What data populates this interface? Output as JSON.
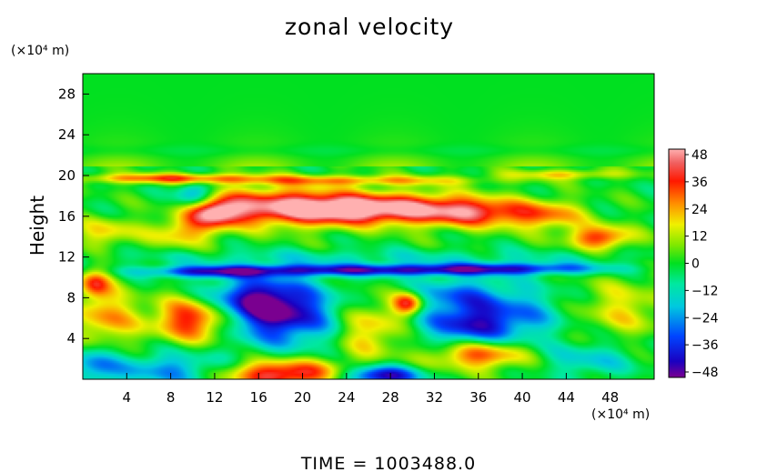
{
  "chart_data": {
    "type": "heatmap",
    "title": "zonal velocity",
    "ylabel": "Height",
    "y_unit": "(×10⁴ m)",
    "x_unit": "(×10⁴ m)",
    "xlim": [
      0,
      52
    ],
    "ylim": [
      0,
      30
    ],
    "x_ticks": [
      "4",
      "8",
      "12",
      "16",
      "20",
      "24",
      "28",
      "32",
      "36",
      "40",
      "44",
      "48"
    ],
    "y_ticks": [
      "4",
      "8",
      "12",
      "16",
      "20",
      "24",
      "28"
    ],
    "colorbar": {
      "min": -48,
      "max": 48,
      "labels": [
        "48",
        "36",
        "24",
        "12",
        "0",
        "−12",
        "−24",
        "−36",
        "−48"
      ]
    },
    "time_label": "TIME  =  1003488.0",
    "features": [
      {
        "x": 18,
        "y": 17,
        "sx": 4,
        "sy": 1.3,
        "v": 46
      },
      {
        "x": 12,
        "y": 16.5,
        "sx": 1.8,
        "sy": 1.0,
        "v": 44
      },
      {
        "x": 24,
        "y": 16.8,
        "sx": 3.0,
        "sy": 1.0,
        "v": 40
      },
      {
        "x": 30,
        "y": 16.8,
        "sx": 3.5,
        "sy": 1.1,
        "v": 40
      },
      {
        "x": 36,
        "y": 16.5,
        "sx": 3.0,
        "sy": 1.0,
        "v": 34
      },
      {
        "x": 42,
        "y": 16.2,
        "sx": 2.5,
        "sy": 1.0,
        "v": 26
      },
      {
        "x": 47,
        "y": 14,
        "sx": 2.0,
        "sy": 0.8,
        "v": 34
      },
      {
        "x": 9,
        "y": 14.5,
        "sx": 2.0,
        "sy": 1.0,
        "v": 22
      },
      {
        "x": 2,
        "y": 14.5,
        "sx": 2.0,
        "sy": 1.0,
        "v": 18
      },
      {
        "x": 8,
        "y": 19.8,
        "sx": 6.0,
        "sy": 0.35,
        "v": 30
      },
      {
        "x": 25,
        "y": 19.6,
        "sx": 8.0,
        "sy": 0.35,
        "v": 22
      },
      {
        "x": 44,
        "y": 20.2,
        "sx": 4.0,
        "sy": 0.35,
        "v": 18
      },
      {
        "x": 26,
        "y": 10.8,
        "sx": 10.0,
        "sy": 0.4,
        "v": -40
      },
      {
        "x": 11,
        "y": 10.6,
        "sx": 4.0,
        "sy": 0.4,
        "v": -28
      },
      {
        "x": 40,
        "y": 11.0,
        "sx": 6.0,
        "sy": 0.4,
        "v": -22
      },
      {
        "x": 26,
        "y": 12.0,
        "sx": 18.0,
        "sy": 0.6,
        "v": -10
      },
      {
        "x": 10,
        "y": 18.2,
        "sx": 1.2,
        "sy": 0.9,
        "v": -26
      },
      {
        "x": 10,
        "y": 6,
        "sx": 2.5,
        "sy": 1.5,
        "v": 40
      },
      {
        "x": 2,
        "y": 6,
        "sx": 2.0,
        "sy": 2.0,
        "v": 24
      },
      {
        "x": 1,
        "y": 9.5,
        "sx": 1.0,
        "sy": 1.0,
        "v": 30
      },
      {
        "x": 18,
        "y": 6.5,
        "sx": 3.5,
        "sy": 2.2,
        "v": -42
      },
      {
        "x": 15,
        "y": 8,
        "sx": 3.0,
        "sy": 1.5,
        "v": -26
      },
      {
        "x": 26,
        "y": 5,
        "sx": 2.0,
        "sy": 2.0,
        "v": 22
      },
      {
        "x": 29.5,
        "y": 7.5,
        "sx": 1.0,
        "sy": 0.8,
        "v": 40
      },
      {
        "x": 35,
        "y": 5.5,
        "sx": 3.0,
        "sy": 1.5,
        "v": -36
      },
      {
        "x": 34,
        "y": 8.5,
        "sx": 3.0,
        "sy": 1.2,
        "v": -22
      },
      {
        "x": 40,
        "y": 6.5,
        "sx": 3.0,
        "sy": 2.0,
        "v": -18
      },
      {
        "x": 49,
        "y": 7,
        "sx": 3.0,
        "sy": 2.0,
        "v": 16
      },
      {
        "x": 18,
        "y": 0.6,
        "sx": 4.0,
        "sy": 1.0,
        "v": 44
      },
      {
        "x": 27,
        "y": 0.4,
        "sx": 2.5,
        "sy": 0.7,
        "v": -46
      },
      {
        "x": 36,
        "y": 2.5,
        "sx": 3.0,
        "sy": 1.0,
        "v": 34
      },
      {
        "x": 8,
        "y": 1.0,
        "sx": 4.0,
        "sy": 1.2,
        "v": -24
      },
      {
        "x": 46,
        "y": 2.0,
        "sx": 3.0,
        "sy": 1.2,
        "v": -16
      },
      {
        "x": 1,
        "y": 1.5,
        "sx": 1.5,
        "sy": 1.5,
        "v": -22
      }
    ]
  }
}
